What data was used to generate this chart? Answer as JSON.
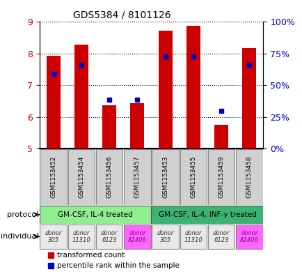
{
  "title": "GDS5384 / 8101126",
  "samples": [
    "GSM1153452",
    "GSM1153454",
    "GSM1153456",
    "GSM1153457",
    "GSM1153453",
    "GSM1153455",
    "GSM1153459",
    "GSM1153458"
  ],
  "red_values": [
    7.93,
    8.28,
    6.37,
    6.43,
    8.73,
    8.87,
    5.75,
    8.18
  ],
  "blue_values": [
    7.35,
    7.65,
    6.55,
    6.55,
    7.9,
    7.9,
    6.2,
    7.65
  ],
  "ylim_left": [
    5,
    9
  ],
  "ylim_right": [
    0,
    100
  ],
  "yticks_left": [
    5,
    6,
    7,
    8,
    9
  ],
  "yticks_right": [
    0,
    25,
    50,
    75,
    100
  ],
  "ytick_labels_right": [
    "0%",
    "25%",
    "50%",
    "75%",
    "100%"
  ],
  "protocol_labels": [
    "GM-CSF, IL-4 treated",
    "GM-CSF, IL-4, INF-γ treated"
  ],
  "protocol_colors": [
    "#90ee90",
    "#3cb371"
  ],
  "individual_colors": [
    "#e8e8e8",
    "#e8e8e8",
    "#e8e8e8",
    "#ff66ff",
    "#e8e8e8",
    "#e8e8e8",
    "#e8e8e8",
    "#ff66ff"
  ],
  "sample_box_color": "#d0d0d0",
  "bar_color": "#cc0000",
  "blue_color": "#0000cc",
  "axis_color_left": "#cc0000",
  "axis_color_right": "#0000cc",
  "bg_color": "#ffffff",
  "ind_labels": [
    "donor\n305",
    "donor\n11310",
    "donor\n6123",
    "donor\n82406",
    "donor\n305",
    "donor\n11310",
    "donor\n6123",
    "donor\n82406"
  ],
  "bar_width": 0.5
}
